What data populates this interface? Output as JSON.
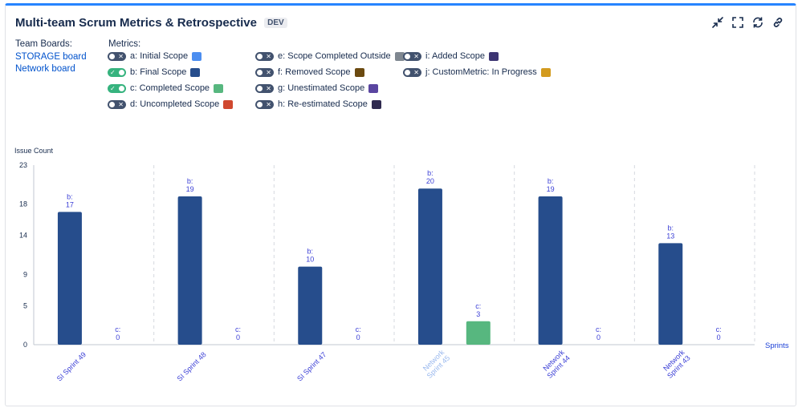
{
  "header": {
    "title": "Multi-team Scrum Metrics & Retrospective",
    "badge": "DEV",
    "toolbar": [
      {
        "icon": "collapse-icon"
      },
      {
        "icon": "fullscreen-icon"
      },
      {
        "icon": "refresh-icon"
      },
      {
        "icon": "link-icon"
      }
    ]
  },
  "boards": {
    "label": "Team Boards:",
    "items": [
      "STORAGE board",
      "Network board"
    ]
  },
  "metrics": {
    "label": "Metrics:",
    "items": [
      {
        "label": "a: Initial Scope",
        "on": false,
        "color": "#4c8ef0"
      },
      {
        "label": "b: Final Scope",
        "on": true,
        "color": "#264d8c"
      },
      {
        "label": "c: Completed Scope",
        "on": true,
        "color": "#57b77f"
      },
      {
        "label": "d: Uncompleted Scope",
        "on": false,
        "color": "#d0482f"
      },
      {
        "label": "e: Scope Completed Outside",
        "on": false,
        "color": "#7f8790"
      },
      {
        "label": "f: Removed Scope",
        "on": false,
        "color": "#6b4a10"
      },
      {
        "label": "g: Unestimated Scope",
        "on": false,
        "color": "#5a45a0"
      },
      {
        "label": "h: Re-estimated Scope",
        "on": false,
        "color": "#2f2a4f"
      },
      {
        "label": "i: Added Scope",
        "on": false,
        "color": "#3d3573"
      },
      {
        "label": "j: CustomMetric: In Progress",
        "on": false,
        "color": "#d39b1f"
      }
    ]
  },
  "chart_data": {
    "type": "bar",
    "title": "",
    "ylabel": "Issue Count",
    "xlabel": "Sprints",
    "ylim": [
      0,
      23
    ],
    "yticks": [
      0,
      5,
      9,
      14,
      18,
      23
    ],
    "categories": [
      {
        "label": "SI Sprint 49",
        "muted": false
      },
      {
        "label": "SI Sprint 48",
        "muted": false
      },
      {
        "label": "SI Sprint 47",
        "muted": false
      },
      {
        "label": "Network Sprint 45",
        "muted": true
      },
      {
        "label": "Network Sprint 44",
        "muted": false
      },
      {
        "label": "Network Sprint 43",
        "muted": false
      }
    ],
    "series": [
      {
        "name": "b",
        "color": "#264d8c",
        "values": [
          17,
          19,
          10,
          20,
          19,
          13
        ]
      },
      {
        "name": "c",
        "color": "#57b77f",
        "values": [
          0,
          0,
          0,
          3,
          0,
          0
        ]
      }
    ]
  }
}
